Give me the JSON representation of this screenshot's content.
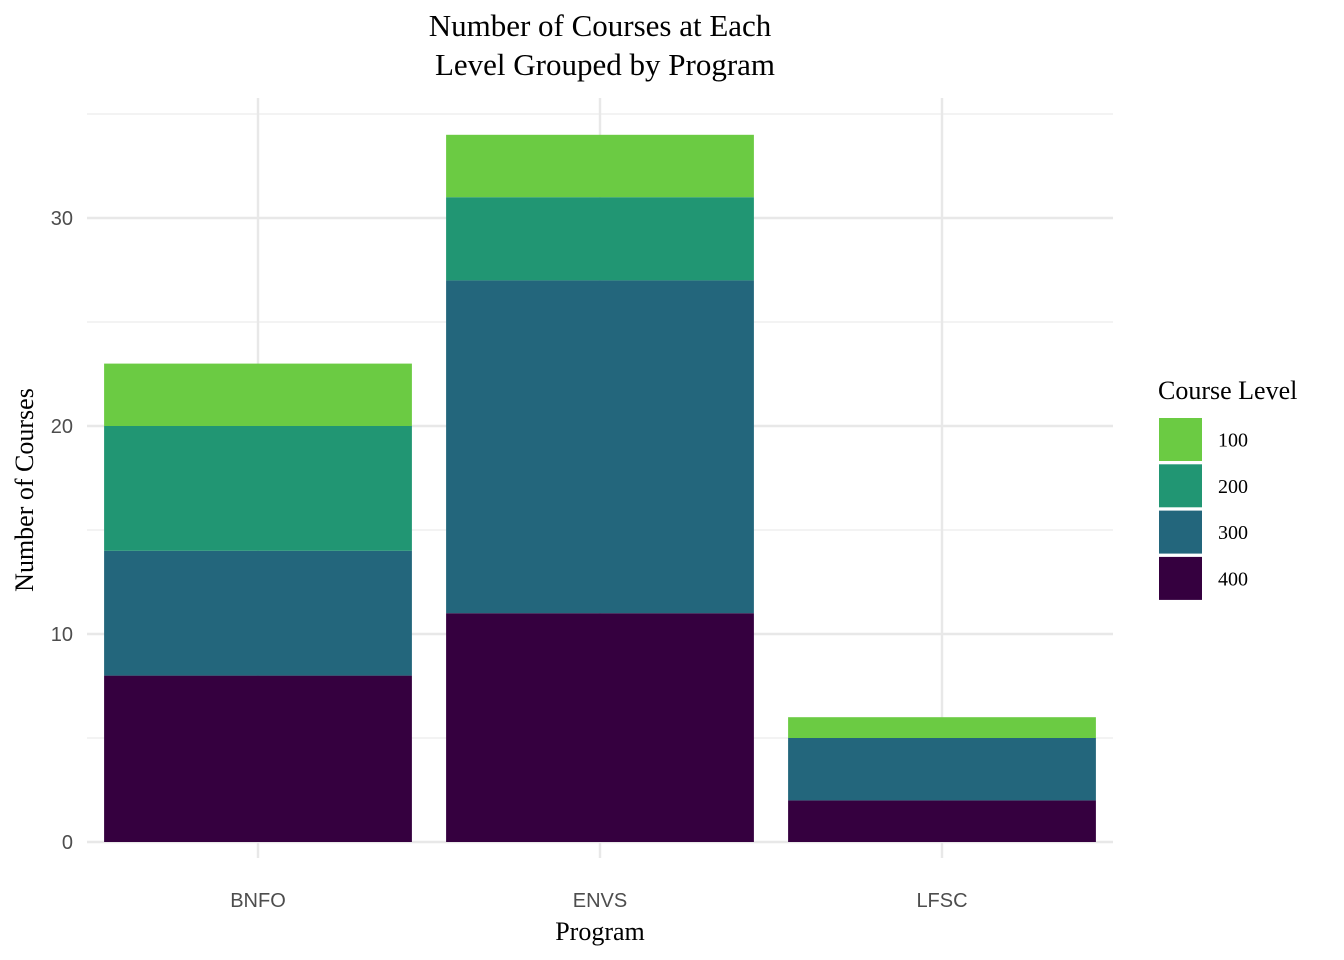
{
  "chart_data": {
    "type": "bar",
    "stacked": true,
    "title_line1": "Number of Courses at Each",
    "title_line2": "Level Grouped by Program",
    "xlabel": "Program",
    "ylabel": "Number of Courses",
    "categories": [
      "BNFO",
      "ENVS",
      "LFSC"
    ],
    "yticks": [
      "0",
      "10",
      "20",
      "30"
    ],
    "ylim": [
      0,
      35
    ],
    "grid": true,
    "legend": {
      "title": "Course Level",
      "placement": "right"
    },
    "series": [
      {
        "name": "400",
        "color": "#35003f",
        "values": [
          8,
          11,
          2
        ]
      },
      {
        "name": "300",
        "color": "#23667c",
        "values": [
          6,
          16,
          3
        ]
      },
      {
        "name": "200",
        "color": "#219673",
        "values": [
          6,
          4,
          0
        ]
      },
      {
        "name": "100",
        "color": "#6bcb43",
        "values": [
          3,
          3,
          1
        ]
      }
    ]
  }
}
